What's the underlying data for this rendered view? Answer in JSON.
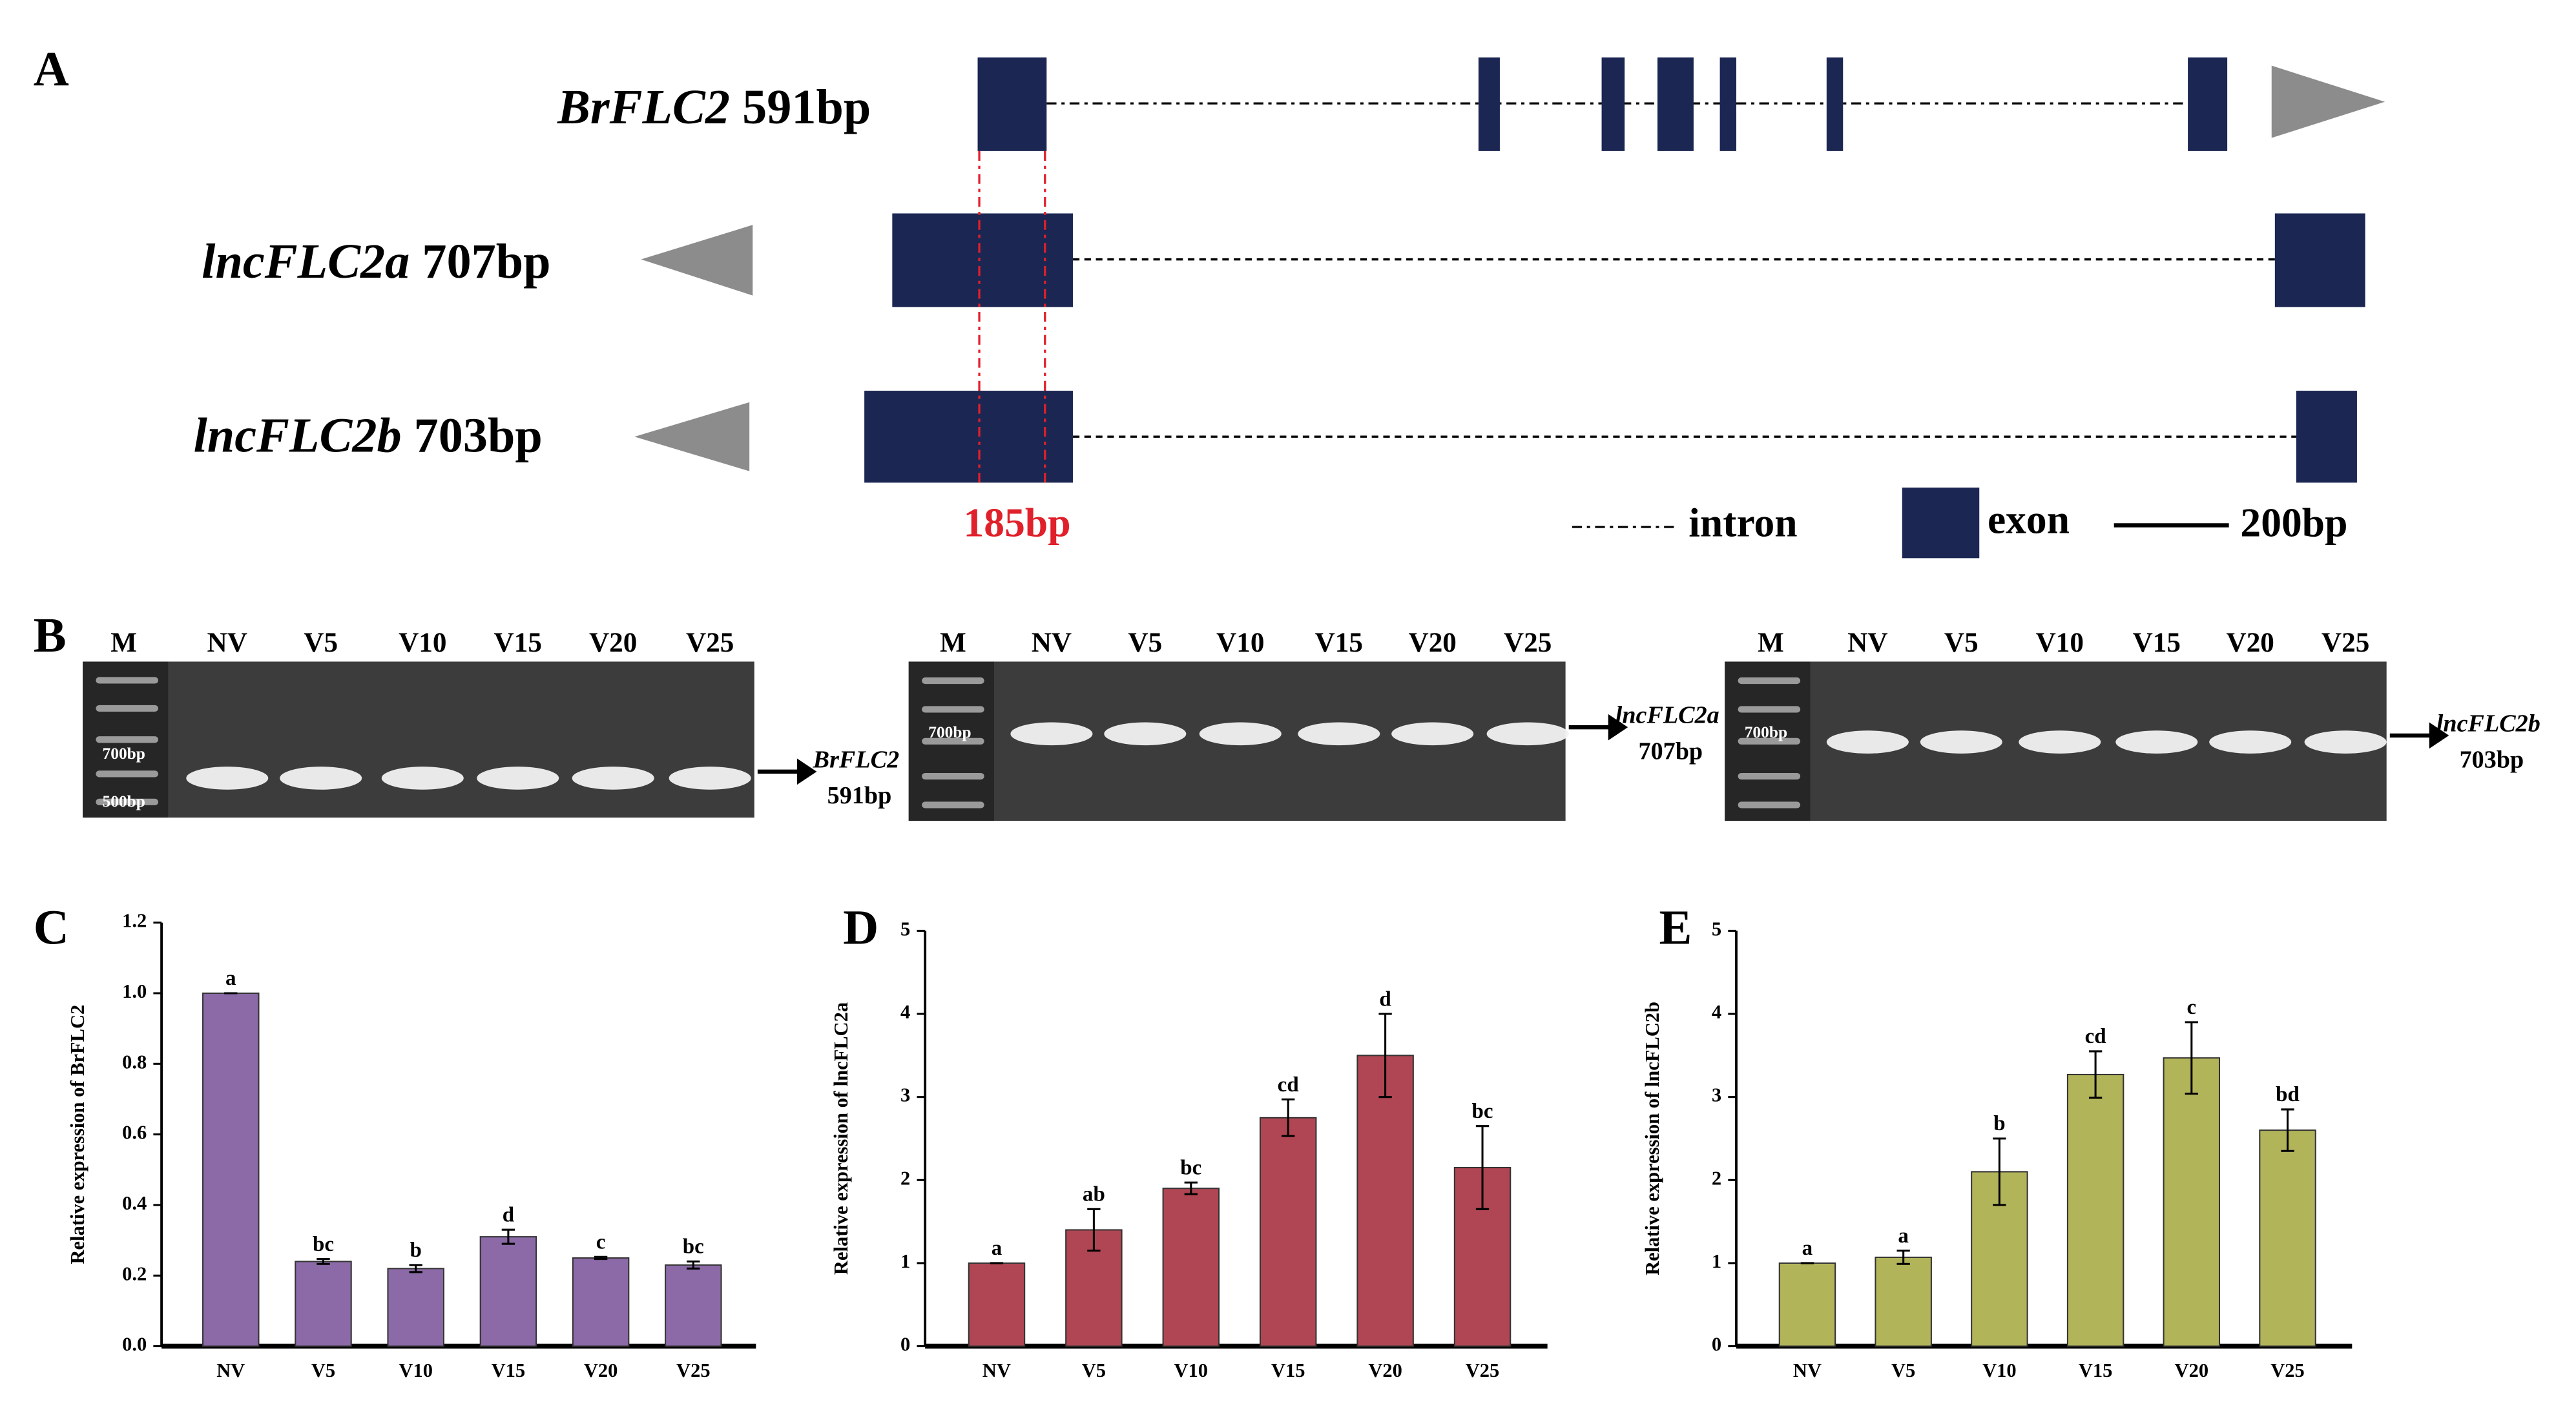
{
  "panel_labels": [
    "A",
    "B",
    "C",
    "D",
    "E"
  ],
  "diagram": {
    "genes": [
      {
        "name": "BrFLC2",
        "length": "591bp"
      },
      {
        "name": "lncFLC2a",
        "length": "707bp"
      },
      {
        "name": "lncFLC2b",
        "length": "703bp"
      }
    ],
    "overlap": "185bp",
    "legend": {
      "intron": "intron",
      "exon": "exon",
      "scale": "200bp"
    }
  },
  "gels": [
    {
      "lanes": [
        "M",
        "NV",
        "V5",
        "V10",
        "V15",
        "V20",
        "V25"
      ],
      "markers": [
        "700bp",
        "500bp"
      ],
      "product": "BrFLC2",
      "size": "591bp"
    },
    {
      "lanes": [
        "M",
        "NV",
        "V5",
        "V10",
        "V15",
        "V20",
        "V25"
      ],
      "markers": [
        "700bp"
      ],
      "product": "lncFLC2a",
      "size": "707bp"
    },
    {
      "lanes": [
        "M",
        "NV",
        "V5",
        "V10",
        "V15",
        "V20",
        "V25"
      ],
      "markers": [
        "700bp"
      ],
      "product": "lncFLC2b",
      "size": "703bp"
    }
  ],
  "chart_data": [
    {
      "type": "bar",
      "ylabel": "Relative expression of BrFLC2",
      "categories": [
        "NV",
        "V5",
        "V10",
        "V15",
        "V20",
        "V25"
      ],
      "values": [
        1.0,
        0.24,
        0.22,
        0.31,
        0.25,
        0.23
      ],
      "errors": [
        0,
        0.007,
        0.01,
        0.02,
        0.003,
        0.01
      ],
      "letters": [
        "a",
        "bc",
        "b",
        "d",
        "c",
        "bc"
      ],
      "color": "#8b6aa7",
      "ylim": [
        0,
        1.2
      ],
      "yticks": [
        {
          "value": 0,
          "label": "0.0"
        },
        0.2,
        0.4,
        0.6,
        0.8,
        {
          "value": 1,
          "label": "1.0"
        },
        1.2
      ]
    },
    {
      "type": "bar",
      "ylabel": "Relative expression of lncFLC2a",
      "categories": [
        "NV",
        "V5",
        "V10",
        "V15",
        "V20",
        "V25"
      ],
      "values": [
        1.0,
        1.4,
        1.9,
        2.75,
        3.5,
        2.15
      ],
      "errors": [
        0,
        0.25,
        0.07,
        0.22,
        0.5,
        0.5
      ],
      "letters": [
        "a",
        "ab",
        "bc",
        "cd",
        "d",
        "bc"
      ],
      "color": "#b04653",
      "ylim": [
        0,
        5
      ],
      "yticks": [
        0,
        1,
        2,
        3,
        4,
        5
      ]
    },
    {
      "type": "bar",
      "ylabel": "Relative expression of lncFLC2b",
      "categories": [
        "NV",
        "V5",
        "V10",
        "V15",
        "V20",
        "V25"
      ],
      "values": [
        1.0,
        1.07,
        2.1,
        3.27,
        3.47,
        2.6
      ],
      "errors": [
        0,
        0.08,
        0.4,
        0.28,
        0.43,
        0.25
      ],
      "letters": [
        "a",
        "a",
        "b",
        "cd",
        "c",
        "bd"
      ],
      "color": "#b2b45a",
      "ylim": [
        0,
        5
      ],
      "yticks": [
        0,
        1,
        2,
        3,
        4,
        5
      ]
    }
  ]
}
